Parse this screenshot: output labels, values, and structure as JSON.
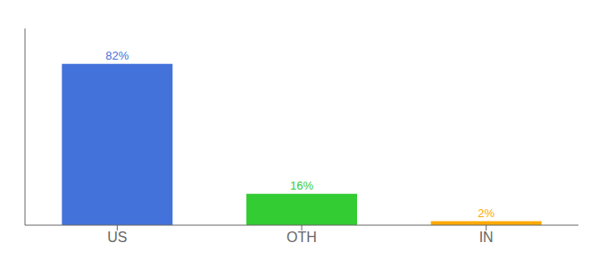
{
  "chart_data": {
    "type": "bar",
    "categories": [
      "US",
      "OTH",
      "IN"
    ],
    "values": [
      82,
      16,
      2
    ],
    "value_labels": [
      "82%",
      "16%",
      "2%"
    ],
    "colors": [
      "#4472db",
      "#33cc33",
      "#ffaa00"
    ],
    "ylim": [
      0,
      100
    ],
    "yticks": [],
    "tick_labels": "x",
    "data_labels": true,
    "grid": false
  }
}
